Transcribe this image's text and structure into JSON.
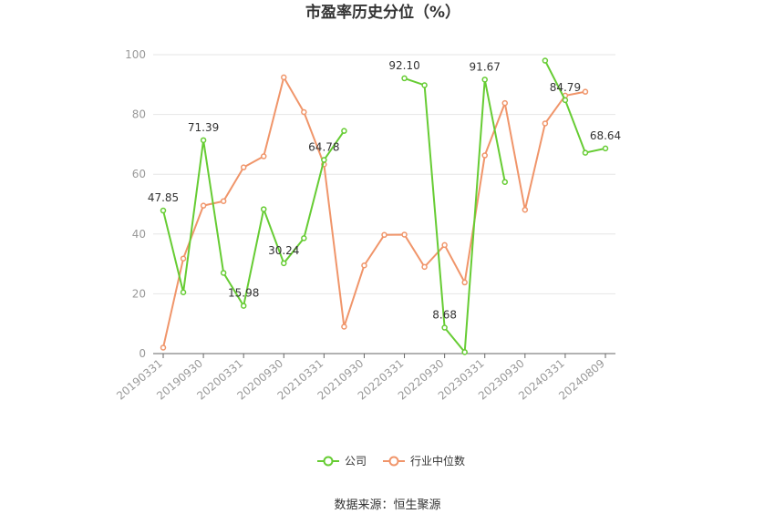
{
  "chart_data": {
    "type": "line",
    "title": "市盈率历史分位（%）",
    "source": "数据来源：恒生聚源",
    "ylim": [
      0,
      100
    ],
    "yticks": [
      0,
      20,
      40,
      60,
      80,
      100
    ],
    "grid": true,
    "legend_position": "bottom",
    "x_tick_labels": [
      "20190331",
      "20190930",
      "20200331",
      "20200930",
      "20210331",
      "20210930",
      "20220331",
      "20220930",
      "20230331",
      "20230930",
      "20240331",
      "20240809"
    ],
    "series": [
      {
        "name": "公司",
        "color": "#66cc33",
        "values": [
          47.85,
          20.5,
          71.39,
          27.0,
          15.98,
          48.3,
          30.24,
          38.6,
          64.78,
          74.5,
          null,
          null,
          92.1,
          89.8,
          8.68,
          0.5,
          91.67,
          57.4,
          null,
          98.0,
          84.79,
          67.2,
          68.64
        ],
        "data_labels": [
          {
            "index": 0,
            "text": "47.85"
          },
          {
            "index": 2,
            "text": "71.39"
          },
          {
            "index": 4,
            "text": "15.98"
          },
          {
            "index": 6,
            "text": "30.24"
          },
          {
            "index": 8,
            "text": "64.78"
          },
          {
            "index": 12,
            "text": "92.10"
          },
          {
            "index": 14,
            "text": "8.68"
          },
          {
            "index": 16,
            "text": "91.67"
          },
          {
            "index": 20,
            "text": "84.79"
          },
          {
            "index": 22,
            "text": "68.64"
          }
        ]
      },
      {
        "name": "行业中位数",
        "color": "#f0956a",
        "values": [
          2.0,
          31.8,
          49.5,
          51.0,
          62.3,
          66.0,
          92.4,
          80.8,
          63.3,
          9.0,
          29.5,
          39.7,
          39.8,
          29.0,
          36.3,
          23.8,
          66.3,
          83.8,
          48.1,
          77.0,
          86.3,
          87.6,
          null
        ]
      }
    ]
  }
}
